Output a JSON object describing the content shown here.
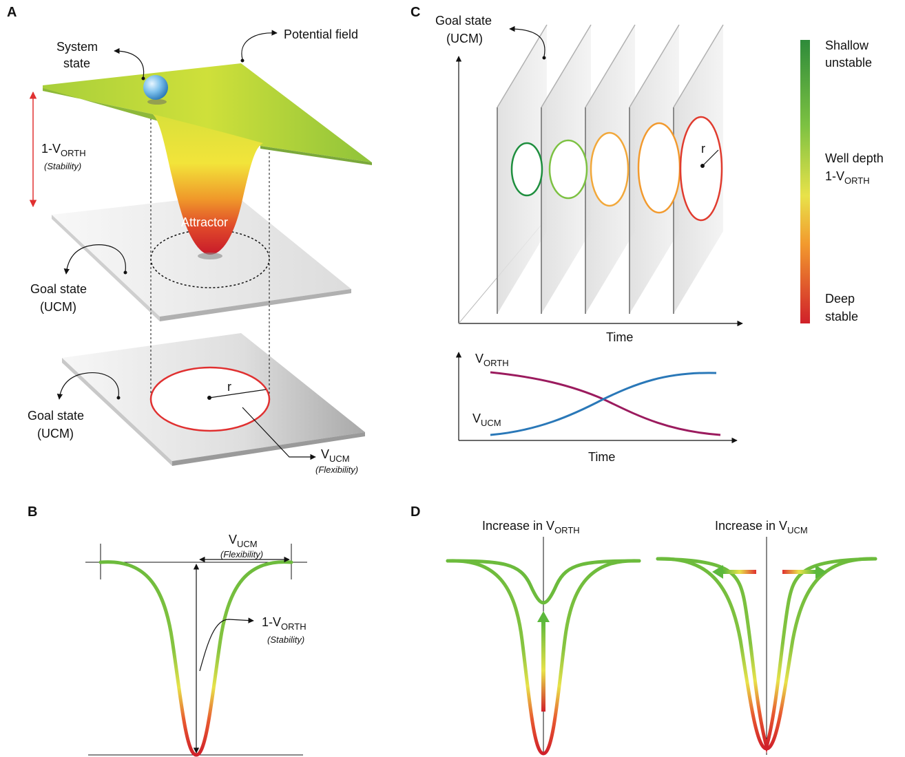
{
  "panels": {
    "a": "A",
    "b": "B",
    "c": "C",
    "d": "D"
  },
  "panel_a": {
    "system_state_1": "System",
    "system_state_2": "state",
    "potential_field": "Potential field",
    "stability_main": "1-V",
    "stability_sub": "ORTH",
    "stability_note": "(Stability)",
    "attractor": "Attractor",
    "goal_state_1": "Goal state",
    "goal_state_2": "(UCM)",
    "r": "r",
    "vucm_main": "V",
    "vucm_sub": "UCM",
    "flexibility_note": "(Flexibility)"
  },
  "panel_b": {
    "vucm_main": "V",
    "vucm_sub": "UCM",
    "flexibility_note": "(Flexibility)",
    "stability_main": "1-V",
    "stability_sub": "ORTH",
    "stability_note": "(Stability)"
  },
  "panel_c": {
    "goal_state_1": "Goal state",
    "goal_state_2": "(UCM)",
    "r": "r",
    "time_top": "Time",
    "vorth_main": "V",
    "vorth_sub": "ORTH",
    "vucm_main": "V",
    "vucm_sub": "UCM",
    "time_bottom": "Time",
    "ellipse_colors": [
      "#1e8e3e",
      "#7cc142",
      "#f2a83a",
      "#f29a2e",
      "#e03b2e"
    ]
  },
  "colorbar": {
    "top_1": "Shallow",
    "top_2": "unstable",
    "mid_1": "Well depth",
    "mid_2_main": "1-V",
    "mid_2_sub": "ORTH",
    "bottom_1": "Deep",
    "bottom_2": "stable",
    "colors": {
      "top": "#2e8b3a",
      "mid": "#e8e24a",
      "bottom": "#d0202a"
    }
  },
  "panel_d": {
    "left_title_main": "Increase in V",
    "left_title_sub": "ORTH",
    "right_title_main": "Increase in V",
    "right_title_sub": "UCM"
  },
  "colors": {
    "vorth_line": "#9b1b5e",
    "vucm_line": "#2a78b8",
    "goal_circle": "#e03030",
    "stability_arrow": "#e03030"
  }
}
